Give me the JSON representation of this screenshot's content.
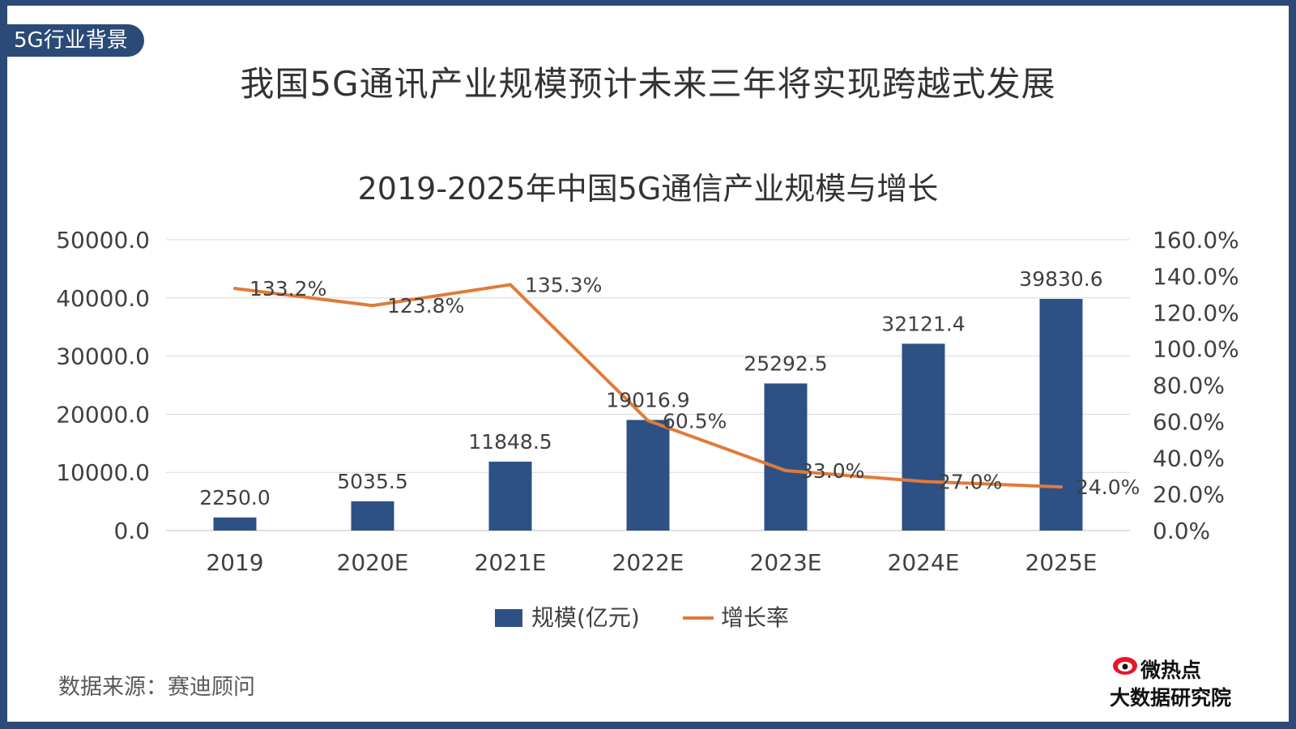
{
  "header": {
    "tag": "5G行业背景",
    "title": "我国5G通讯产业规模预计未来三年将实现跨越式发展"
  },
  "source": "数据来源：赛迪顾问",
  "logo": {
    "line1": "微热点",
    "line2": "大数据研究院"
  },
  "colors": {
    "bar": "#2e5185",
    "line": "#e07b39",
    "frame": "#2b4a77"
  },
  "chart_data": {
    "type": "bar",
    "title": "2019-2025年中国5G通信产业规模与增长",
    "categories": [
      "2019",
      "2020E",
      "2021E",
      "2022E",
      "2023E",
      "2024E",
      "2025E"
    ],
    "y_ticks": [
      "0.0",
      "10000.0",
      "20000.0",
      "30000.0",
      "40000.0",
      "50000.0"
    ],
    "y2_ticks": [
      "0.0%",
      "20.0%",
      "40.0%",
      "60.0%",
      "80.0%",
      "100.0%",
      "120.0%",
      "140.0%",
      "160.0%"
    ],
    "ylim": [
      0,
      50000
    ],
    "y2lim": [
      0,
      160
    ],
    "grid": true,
    "legend_position": "bottom",
    "series": [
      {
        "name": "规模(亿元)",
        "type": "bar",
        "axis": "left",
        "values": [
          2250.0,
          5035.5,
          11848.5,
          19016.9,
          25292.5,
          32121.4,
          39830.6
        ],
        "labels": [
          "2250.0",
          "5035.5",
          "11848.5",
          "19016.9",
          "25292.5",
          "32121.4",
          "39830.6"
        ]
      },
      {
        "name": "增长率",
        "type": "line",
        "axis": "right",
        "values": [
          133.2,
          123.8,
          135.3,
          60.5,
          33.0,
          27.0,
          24.0
        ],
        "labels": [
          "133.2%",
          "123.8%",
          "135.3%",
          "60.5%",
          "33.0%",
          "27.0%",
          "24.0%"
        ]
      }
    ]
  }
}
